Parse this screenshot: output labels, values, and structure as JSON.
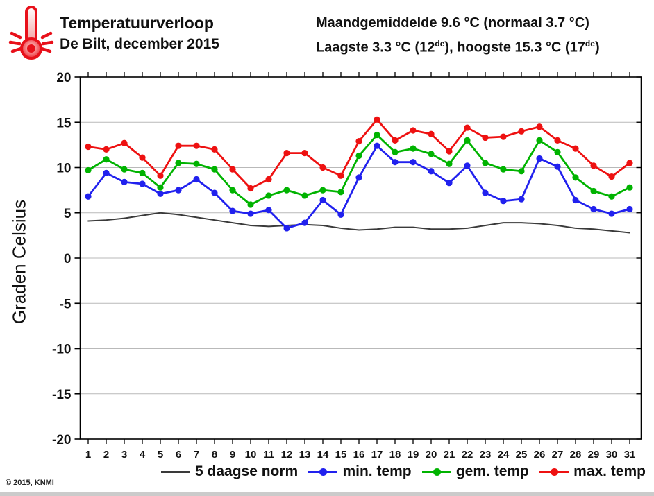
{
  "page": {
    "footer": "© 2015, KNMI"
  },
  "header": {
    "title": "Temperatuurverloop",
    "subtitle": "De Bilt, december 2015",
    "stat_line1": "Maandgemiddelde 9.6 °C (normaal 3.7 °C)",
    "stat_line2": {
      "a": "Laagste 3.3 °C (12",
      "sup1": "de",
      "b": "), hoogste 15.3 °C (17",
      "sup2": "de",
      "c": ")"
    },
    "thermometer_icon_color": "#e8101a"
  },
  "chart_data": {
    "type": "line",
    "title": "Temperatuurverloop",
    "subtitle": "De Bilt, december 2015",
    "annotations": [
      "Maandgemiddelde 9.6 °C (normaal 3.7 °C)",
      "Laagste 3.3 °C (12de), hoogste 15.3 °C (17de)"
    ],
    "ylabel": "Graden Celsius",
    "xlabel": "",
    "ylim": [
      -20,
      20
    ],
    "yticks": [
      20,
      15,
      10,
      5,
      0,
      -5,
      -10,
      -15,
      -20
    ],
    "grid": "horizontal",
    "grid_color": "#b9b9b9",
    "frame_color": "#000000",
    "legend_position": "bottom",
    "x": [
      1,
      2,
      3,
      4,
      5,
      6,
      7,
      8,
      9,
      10,
      11,
      12,
      13,
      14,
      15,
      16,
      17,
      18,
      19,
      20,
      21,
      22,
      23,
      24,
      25,
      26,
      27,
      28,
      29,
      30,
      31
    ],
    "series": [
      {
        "name": "5 daagse norm",
        "color": "#3a3a3a",
        "marker": false,
        "values": [
          4.1,
          4.2,
          4.4,
          4.7,
          5.0,
          4.8,
          4.5,
          4.2,
          3.9,
          3.6,
          3.5,
          3.6,
          3.7,
          3.6,
          3.3,
          3.1,
          3.2,
          3.4,
          3.4,
          3.2,
          3.2,
          3.3,
          3.6,
          3.9,
          3.9,
          3.8,
          3.6,
          3.3,
          3.2,
          3.0,
          2.8
        ]
      },
      {
        "name": "min. temp",
        "color": "#2121ee",
        "marker": true,
        "values": [
          6.8,
          9.4,
          8.4,
          8.2,
          7.1,
          7.5,
          8.7,
          7.2,
          5.2,
          4.9,
          5.3,
          3.3,
          3.9,
          6.4,
          4.8,
          8.9,
          12.4,
          10.6,
          10.6,
          9.6,
          8.3,
          10.2,
          7.2,
          6.3,
          6.5,
          11.0,
          10.1,
          6.4,
          5.4,
          4.9,
          5.4
        ]
      },
      {
        "name": "gem. temp",
        "color": "#00b300",
        "marker": true,
        "values": [
          9.7,
          10.9,
          9.8,
          9.4,
          7.8,
          10.5,
          10.4,
          9.8,
          7.5,
          5.9,
          6.9,
          7.5,
          6.9,
          7.5,
          7.3,
          11.3,
          13.6,
          11.7,
          12.1,
          11.5,
          10.4,
          13.0,
          10.5,
          9.8,
          9.6,
          13.0,
          11.7,
          8.9,
          7.4,
          6.8,
          7.8
        ]
      },
      {
        "name": "max. temp",
        "color": "#ee1111",
        "marker": true,
        "values": [
          12.3,
          12.0,
          12.7,
          11.1,
          9.1,
          12.4,
          12.4,
          12.0,
          9.8,
          7.7,
          8.7,
          11.6,
          11.6,
          10.0,
          9.1,
          12.9,
          15.3,
          13.0,
          14.1,
          13.7,
          11.8,
          14.4,
          13.3,
          13.4,
          14.0,
          14.5,
          13.0,
          12.1,
          10.2,
          9.0,
          10.5
        ]
      }
    ]
  }
}
